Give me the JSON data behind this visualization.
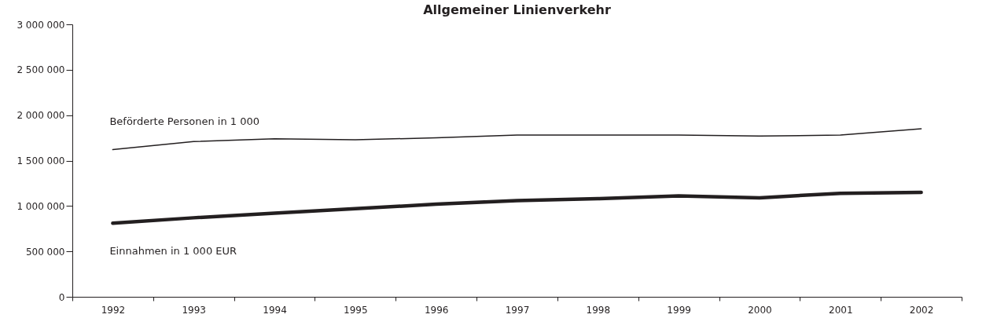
{
  "chart_data": {
    "type": "line",
    "title": "Allgemeiner Linienverkehr",
    "categories": [
      "1992",
      "1993",
      "1994",
      "1995",
      "1996",
      "1997",
      "1998",
      "1999",
      "2000",
      "2001",
      "2002"
    ],
    "series": [
      {
        "name": "Beförderte Personen in 1 000",
        "color": "#231f20",
        "values": [
          1620000,
          1710000,
          1740000,
          1730000,
          1750000,
          1780000,
          1780000,
          1780000,
          1770000,
          1780000,
          1850000
        ]
      },
      {
        "name": "Einnahmen in 1 000 EUR",
        "color": "#231f20",
        "values": [
          810000,
          870000,
          920000,
          970000,
          1020000,
          1060000,
          1080000,
          1110000,
          1090000,
          1140000,
          1150000
        ]
      }
    ],
    "ylim": [
      0,
      3000000
    ],
    "yticks": [
      {
        "value": 0,
        "label": "0"
      },
      {
        "value": 500000,
        "label": "500 000"
      },
      {
        "value": 1000000,
        "label": "1 000 000"
      },
      {
        "value": 1500000,
        "label": "1 500 000"
      },
      {
        "value": 2000000,
        "label": "2 000 000"
      },
      {
        "value": 2500000,
        "label": "2 500 000"
      },
      {
        "value": 3000000,
        "label": "3 000 000"
      }
    ],
    "marker": "none",
    "line_style": "solid"
  }
}
